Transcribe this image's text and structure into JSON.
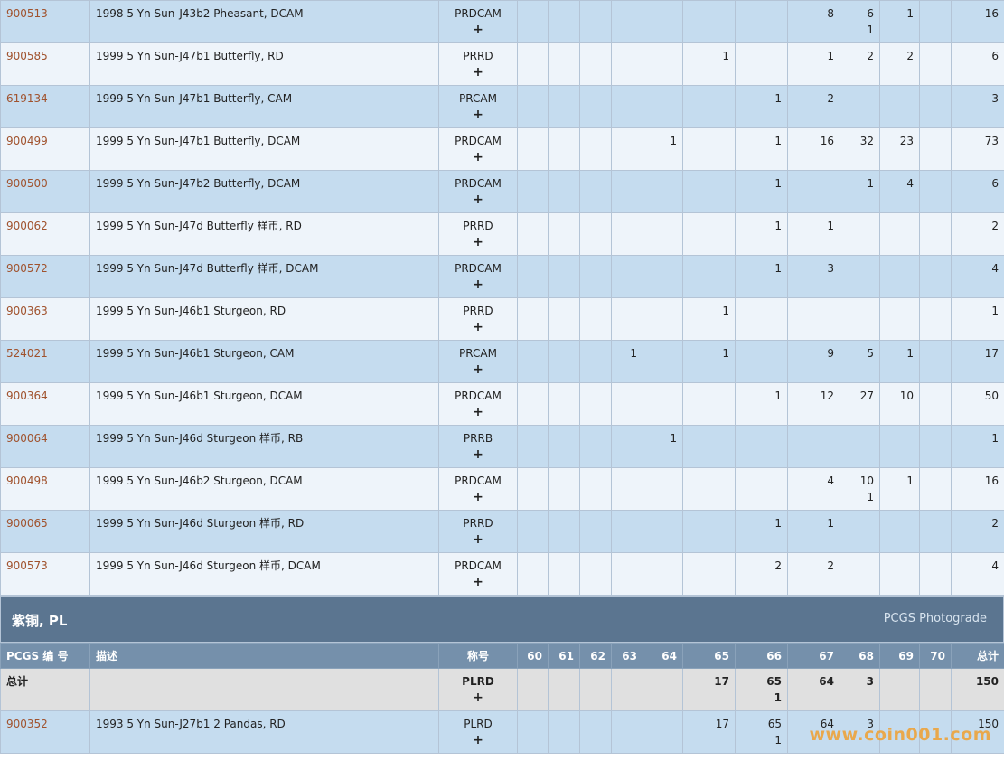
{
  "rows_top": [
    {
      "id": "900513",
      "desc": "1998 5 Yn Sun-J43b2 Pheasant, DCAM",
      "des": "PRDCAM",
      "g60": "",
      "g61": "",
      "g62": "",
      "g63": "",
      "g64": "",
      "g65": "",
      "g66": "",
      "g67": "8",
      "g68": "6",
      "g68s": "1",
      "g69": "1",
      "g70": "",
      "total": "16"
    },
    {
      "id": "900585",
      "desc": "1999 5 Yn Sun-J47b1 Butterfly, RD",
      "des": "PRRD",
      "g60": "",
      "g61": "",
      "g62": "",
      "g63": "",
      "g64": "",
      "g65": "1",
      "g66": "",
      "g67": "1",
      "g68": "2",
      "g68s": "",
      "g69": "2",
      "g70": "",
      "total": "6"
    },
    {
      "id": "619134",
      "desc": "1999 5 Yn Sun-J47b1 Butterfly, CAM",
      "des": "PRCAM",
      "g60": "",
      "g61": "",
      "g62": "",
      "g63": "",
      "g64": "",
      "g65": "",
      "g66": "1",
      "g67": "2",
      "g68": "",
      "g68s": "",
      "g69": "",
      "g70": "",
      "total": "3"
    },
    {
      "id": "900499",
      "desc": "1999 5 Yn Sun-J47b1 Butterfly, DCAM",
      "des": "PRDCAM",
      "g60": "",
      "g61": "",
      "g62": "",
      "g63": "",
      "g64": "1",
      "g65": "",
      "g66": "1",
      "g67": "16",
      "g68": "32",
      "g68s": "",
      "g69": "23",
      "g70": "",
      "total": "73"
    },
    {
      "id": "900500",
      "desc": "1999 5 Yn Sun-J47b2 Butterfly, DCAM",
      "des": "PRDCAM",
      "g60": "",
      "g61": "",
      "g62": "",
      "g63": "",
      "g64": "",
      "g65": "",
      "g66": "1",
      "g67": "",
      "g68": "1",
      "g68s": "",
      "g69": "4",
      "g70": "",
      "total": "6"
    },
    {
      "id": "900062",
      "desc": "1999 5 Yn Sun-J47d Butterfly 样币, RD",
      "des": "PRRD",
      "g60": "",
      "g61": "",
      "g62": "",
      "g63": "",
      "g64": "",
      "g65": "",
      "g66": "1",
      "g67": "1",
      "g68": "",
      "g68s": "",
      "g69": "",
      "g70": "",
      "total": "2"
    },
    {
      "id": "900572",
      "desc": "1999 5 Yn Sun-J47d Butterfly 样币, DCAM",
      "des": "PRDCAM",
      "g60": "",
      "g61": "",
      "g62": "",
      "g63": "",
      "g64": "",
      "g65": "",
      "g66": "1",
      "g67": "3",
      "g68": "",
      "g68s": "",
      "g69": "",
      "g70": "",
      "total": "4"
    },
    {
      "id": "900363",
      "desc": "1999 5 Yn Sun-J46b1 Sturgeon, RD",
      "des": "PRRD",
      "g60": "",
      "g61": "",
      "g62": "",
      "g63": "",
      "g64": "",
      "g65": "1",
      "g66": "",
      "g67": "",
      "g68": "",
      "g68s": "",
      "g69": "",
      "g70": "",
      "total": "1"
    },
    {
      "id": "524021",
      "desc": "1999 5 Yn Sun-J46b1 Sturgeon, CAM",
      "des": "PRCAM",
      "g60": "",
      "g61": "",
      "g62": "",
      "g63": "1",
      "g64": "",
      "g65": "1",
      "g66": "",
      "g67": "9",
      "g68": "5",
      "g68s": "",
      "g69": "1",
      "g70": "",
      "total": "17"
    },
    {
      "id": "900364",
      "desc": "1999 5 Yn Sun-J46b1 Sturgeon, DCAM",
      "des": "PRDCAM",
      "g60": "",
      "g61": "",
      "g62": "",
      "g63": "",
      "g64": "",
      "g65": "",
      "g66": "1",
      "g67": "12",
      "g68": "27",
      "g68s": "",
      "g69": "10",
      "g70": "",
      "total": "50"
    },
    {
      "id": "900064",
      "desc": "1999 5 Yn Sun-J46d Sturgeon 样币, RB",
      "des": "PRRB",
      "g60": "",
      "g61": "",
      "g62": "",
      "g63": "",
      "g64": "1",
      "g65": "",
      "g66": "",
      "g67": "",
      "g68": "",
      "g68s": "",
      "g69": "",
      "g70": "",
      "total": "1"
    },
    {
      "id": "900498",
      "desc": "1999 5 Yn Sun-J46b2 Sturgeon, DCAM",
      "des": "PRDCAM",
      "g60": "",
      "g61": "",
      "g62": "",
      "g63": "",
      "g64": "",
      "g65": "",
      "g66": "",
      "g67": "4",
      "g68": "10",
      "g68s": "1",
      "g69": "1",
      "g70": "",
      "total": "16"
    },
    {
      "id": "900065",
      "desc": "1999 5 Yn Sun-J46d Sturgeon 样币, RD",
      "des": "PRRD",
      "g60": "",
      "g61": "",
      "g62": "",
      "g63": "",
      "g64": "",
      "g65": "",
      "g66": "1",
      "g67": "1",
      "g68": "",
      "g68s": "",
      "g69": "",
      "g70": "",
      "total": "2"
    },
    {
      "id": "900573",
      "desc": "1999 5 Yn Sun-J46d Sturgeon 样币, DCAM",
      "des": "PRDCAM",
      "g60": "",
      "g61": "",
      "g62": "",
      "g63": "",
      "g64": "",
      "g65": "",
      "g66": "2",
      "g67": "2",
      "g68": "",
      "g68s": "",
      "g69": "",
      "g70": "",
      "total": "4"
    }
  ],
  "plus_symbol": "+",
  "section": {
    "title": "紫铜, PL",
    "link": "PCGS Photograde"
  },
  "header": {
    "pcgs": "PCGS 编 号",
    "desc": "描述",
    "des": "称号",
    "g60": "60",
    "g61": "61",
    "g62": "62",
    "g63": "63",
    "g64": "64",
    "g65": "65",
    "g66": "66",
    "g67": "67",
    "g68": "68",
    "g69": "69",
    "g70": "70",
    "total": "总计"
  },
  "total_row": {
    "label": "总计",
    "des": "PLRD",
    "g65": "17",
    "g66": "65",
    "g66s": "1",
    "g67": "64",
    "g68": "3",
    "total": "150"
  },
  "bottom_row": {
    "id": "900352",
    "desc": "1993 5 Yn Sun-J27b1 2 Pandas, RD",
    "des": "PLRD",
    "g65": "17",
    "g66": "65",
    "g66s": "1",
    "g67": "64",
    "g68": "3",
    "total": "150"
  },
  "watermark": "www.coin001.com"
}
